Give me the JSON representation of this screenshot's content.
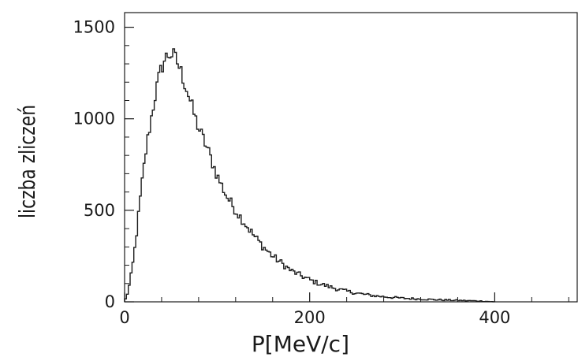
{
  "chart_data": {
    "type": "histogram",
    "xlabel": "P[MeV/c]",
    "ylabel": "liczba zliczeń",
    "xlim": [
      0,
      490
    ],
    "ylim": [
      0,
      1580
    ],
    "xticks": [
      0,
      200,
      400
    ],
    "yticks": [
      0,
      500,
      1000,
      1500
    ],
    "grid": false,
    "legend": "none",
    "bin_width": 2,
    "curve_points": [
      [
        0,
        0
      ],
      [
        4,
        60
      ],
      [
        8,
        170
      ],
      [
        12,
        330
      ],
      [
        16,
        520
      ],
      [
        20,
        700
      ],
      [
        24,
        860
      ],
      [
        28,
        980
      ],
      [
        32,
        1100
      ],
      [
        36,
        1200
      ],
      [
        40,
        1280
      ],
      [
        44,
        1330
      ],
      [
        48,
        1355
      ],
      [
        52,
        1350
      ],
      [
        56,
        1320
      ],
      [
        60,
        1270
      ],
      [
        64,
        1210
      ],
      [
        68,
        1150
      ],
      [
        72,
        1080
      ],
      [
        76,
        1010
      ],
      [
        80,
        950
      ],
      [
        85,
        890
      ],
      [
        90,
        830
      ],
      [
        95,
        760
      ],
      [
        100,
        690
      ],
      [
        110,
        580
      ],
      [
        120,
        500
      ],
      [
        130,
        430
      ],
      [
        140,
        360
      ],
      [
        150,
        300
      ],
      [
        160,
        250
      ],
      [
        170,
        210
      ],
      [
        180,
        170
      ],
      [
        190,
        145
      ],
      [
        200,
        120
      ],
      [
        210,
        100
      ],
      [
        220,
        85
      ],
      [
        230,
        70
      ],
      [
        240,
        58
      ],
      [
        250,
        48
      ],
      [
        260,
        40
      ],
      [
        270,
        33
      ],
      [
        280,
        28
      ],
      [
        290,
        24
      ],
      [
        300,
        20
      ],
      [
        320,
        15
      ],
      [
        340,
        11
      ],
      [
        360,
        8
      ],
      [
        380,
        5
      ],
      [
        390,
        3
      ],
      [
        395,
        1
      ],
      [
        400,
        0
      ]
    ]
  }
}
